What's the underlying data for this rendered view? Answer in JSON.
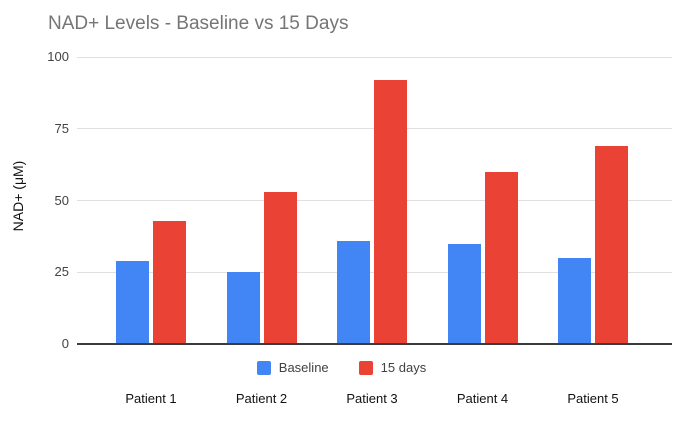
{
  "title": "NAD+ Levels - Baseline vs 15 Days",
  "colors": {
    "baseline_blue": "#4285F4",
    "days15_red": "#EA4335",
    "gridline": "#e0e0e0",
    "axis_line": "#3c3c3c",
    "title_text": "#757575"
  },
  "chart_data": {
    "type": "bar",
    "title": "NAD+ Levels - Baseline vs 15 Days",
    "categories": [
      "Patient 1",
      "Patient 2",
      "Patient 3",
      "Patient 4",
      "Patient 5"
    ],
    "series": [
      {
        "name": "Baseline",
        "color": "#4285F4",
        "values": [
          29,
          25,
          36,
          35,
          30
        ]
      },
      {
        "name": "15 days",
        "color": "#EA4335",
        "values": [
          43,
          53,
          92,
          60,
          69
        ]
      }
    ],
    "xlabel": "",
    "ylabel": "NAD+ (μM)",
    "ylim": [
      0,
      100
    ],
    "yticks": [
      0,
      25,
      50,
      75,
      100
    ],
    "grid": true,
    "legend_position": "bottom"
  }
}
